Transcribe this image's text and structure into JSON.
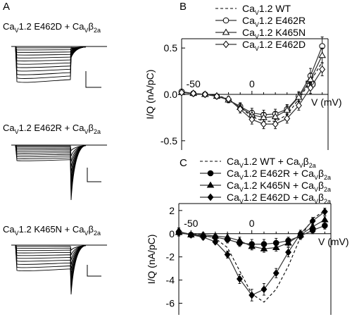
{
  "panel_A": {
    "letter": "A",
    "traces": [
      {
        "label": "Ca",
        "sub1": "V",
        "mid": "1.2 E462D + Ca",
        "sub2": "V",
        "sup": "β",
        "sub3": "2a"
      },
      {
        "label": "Ca",
        "sub1": "V",
        "mid": "1.2 E462R + Ca",
        "sub2": "V",
        "sup": "β",
        "sub3": "2a"
      },
      {
        "label": "Ca",
        "sub1": "V",
        "mid": "1.2 K465N + Ca",
        "sub2": "V",
        "sup": "β",
        "sub3": "2a"
      }
    ]
  },
  "chart_data": [
    {
      "panel": "B",
      "type": "line",
      "xlabel": "V (mV)",
      "ylabel": "I/Q (nA/pC)",
      "xlim": [
        -60,
        65
      ],
      "ylim": [
        -0.6,
        0.6
      ],
      "xticks": [
        -50,
        0,
        50
      ],
      "yticks": [
        -0.5,
        0.0,
        0.5
      ],
      "x": [
        -60,
        -50,
        -40,
        -30,
        -20,
        -10,
        0,
        10,
        20,
        30,
        40,
        50,
        60
      ],
      "series": [
        {
          "name_parts": [
            "Ca",
            "V",
            "1.2 WT"
          ],
          "marker": "none",
          "dash": true,
          "values": [
            0.02,
            0.01,
            0.0,
            -0.01,
            -0.05,
            -0.14,
            -0.24,
            -0.29,
            -0.29,
            -0.22,
            -0.05,
            0.14,
            0.35
          ]
        },
        {
          "name_parts": [
            "Ca",
            "V",
            "1.2 E462R"
          ],
          "marker": "circle-open",
          "values": [
            0.03,
            0.01,
            0.0,
            -0.02,
            -0.06,
            -0.13,
            -0.2,
            -0.22,
            -0.21,
            -0.16,
            -0.02,
            0.2,
            0.52
          ],
          "err": [
            0.02,
            0.02,
            0.02,
            0.02,
            0.03,
            0.04,
            0.05,
            0.05,
            0.05,
            0.05,
            0.05,
            0.08,
            0.1
          ]
        },
        {
          "name_parts": [
            "Ca",
            "V",
            "1.2 K465N"
          ],
          "marker": "triangle-open",
          "values": [
            0.02,
            0.01,
            0.0,
            -0.02,
            -0.06,
            -0.14,
            -0.22,
            -0.25,
            -0.24,
            -0.17,
            -0.03,
            0.16,
            0.42
          ],
          "err": [
            0.02,
            0.02,
            0.02,
            0.02,
            0.03,
            0.04,
            0.05,
            0.05,
            0.05,
            0.05,
            0.05,
            0.07,
            0.08
          ]
        },
        {
          "name_parts": [
            "Ca",
            "V",
            "1.2 E462D"
          ],
          "marker": "diamond-open",
          "values": [
            0.02,
            0.01,
            0.0,
            -0.02,
            -0.05,
            -0.16,
            -0.27,
            -0.32,
            -0.32,
            -0.26,
            -0.12,
            0.07,
            0.27
          ],
          "err": [
            0.02,
            0.02,
            0.02,
            0.02,
            0.03,
            0.04,
            0.05,
            0.05,
            0.05,
            0.05,
            0.05,
            0.06,
            0.07
          ]
        }
      ]
    },
    {
      "panel": "C",
      "type": "line",
      "xlabel": "V (mV)",
      "ylabel": "I/Q (nA/pC)",
      "xlim": [
        -60,
        65
      ],
      "ylim": [
        -7,
        2.6
      ],
      "xticks": [
        -50,
        0
      ],
      "yticks": [
        2,
        0,
        -2,
        -4,
        -6
      ],
      "x": [
        -60,
        -50,
        -40,
        -30,
        -20,
        -10,
        0,
        10,
        20,
        30,
        40,
        50,
        60
      ],
      "series": [
        {
          "name_parts": [
            "Ca",
            "V",
            "1.2 WT + Ca",
            "V",
            "β",
            "2a"
          ],
          "marker": "none",
          "dash": true,
          "values": [
            0.1,
            0.0,
            -0.1,
            -0.4,
            -1.2,
            -3.2,
            -5.2,
            -5.9,
            -4.8,
            -2.8,
            -0.3,
            1.3,
            2.0
          ]
        },
        {
          "name_parts": [
            "Ca",
            "V",
            "1.2 E462R + Ca",
            "V",
            "β",
            "2a"
          ],
          "marker": "circle-filled",
          "values": [
            0.1,
            -0.1,
            -0.2,
            -0.3,
            -0.5,
            -0.8,
            -0.9,
            -0.9,
            -0.8,
            -0.6,
            -0.2,
            0.3,
            0.7
          ],
          "err": [
            0.3,
            0.2,
            0.2,
            0.2,
            0.3,
            0.3,
            0.4,
            0.4,
            0.4,
            0.3,
            0.3,
            0.3,
            0.3
          ]
        },
        {
          "name_parts": [
            "Ca",
            "V",
            "1.2 K465N + Ca",
            "V",
            "β",
            "2a"
          ],
          "marker": "triangle-filled",
          "values": [
            0.1,
            -0.1,
            -0.1,
            -0.2,
            -0.3,
            -0.6,
            -1.1,
            -1.3,
            -1.2,
            -0.8,
            -0.1,
            0.6,
            1.2
          ],
          "err": [
            0.3,
            0.2,
            0.2,
            0.2,
            0.3,
            0.3,
            0.3,
            0.3,
            0.3,
            0.3,
            0.3,
            0.3,
            0.3
          ]
        },
        {
          "name_parts": [
            "Ca",
            "V",
            "1.2 E462D + Ca",
            "V",
            "β",
            "2a"
          ],
          "marker": "diamond-filled",
          "values": [
            0.2,
            -0.1,
            -0.3,
            -0.7,
            -1.8,
            -3.9,
            -5.3,
            -4.8,
            -3.4,
            -1.6,
            0.0,
            1.1,
            1.9
          ],
          "err": [
            0.3,
            0.2,
            0.2,
            0.2,
            0.3,
            0.4,
            0.5,
            0.5,
            0.4,
            0.4,
            0.3,
            0.3,
            0.3
          ]
        }
      ]
    }
  ]
}
